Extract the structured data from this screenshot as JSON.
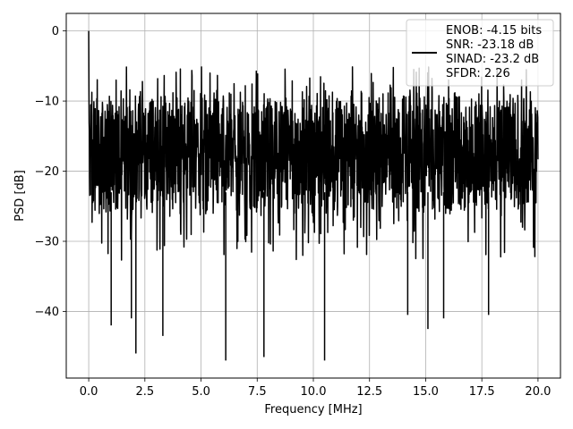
{
  "chart_data": {
    "type": "line",
    "xlabel": "Frequency [MHz]",
    "ylabel": "PSD [dB]",
    "xlim": [
      -1.0,
      21.0
    ],
    "ylim": [
      -49.5,
      2.5
    ],
    "x_ticks": [
      0.0,
      2.5,
      5.0,
      7.5,
      10.0,
      12.5,
      15.0,
      17.5,
      20.0
    ],
    "x_tick_labels": [
      "0.0",
      "2.5",
      "5.0",
      "7.5",
      "10.0",
      "12.5",
      "15.0",
      "17.5",
      "20.0"
    ],
    "y_ticks": [
      0,
      -10,
      -20,
      -30,
      -40
    ],
    "y_tick_labels": [
      "0",
      "−10",
      "−20",
      "−30",
      "−40"
    ],
    "grid": true,
    "legend_position": "top-right",
    "line_color": "#000000",
    "legend": {
      "lines": [
        "ENOB: -4.15 bits",
        "SNR: -23.18 dB",
        "SINAD: -23.2 dB",
        "SFDR: 2.26"
      ]
    },
    "series": [
      {
        "x_start": 0.0,
        "x_end": 20.0,
        "peak": {
          "x": 0.0,
          "y": 0.0
        },
        "typical_band": [
          -25,
          -10
        ],
        "min_dips": [
          {
            "x": 1.0,
            "y": -42
          },
          {
            "x": 1.9,
            "y": -41
          },
          {
            "x": 2.1,
            "y": -46
          },
          {
            "x": 3.3,
            "y": -43.5
          },
          {
            "x": 6.1,
            "y": -47
          },
          {
            "x": 7.8,
            "y": -46.5
          },
          {
            "x": 10.5,
            "y": -47
          },
          {
            "x": 14.2,
            "y": -40.5
          },
          {
            "x": 15.1,
            "y": -42.5
          },
          {
            "x": 15.8,
            "y": -41
          },
          {
            "x": 17.8,
            "y": -40.5
          }
        ]
      }
    ]
  }
}
